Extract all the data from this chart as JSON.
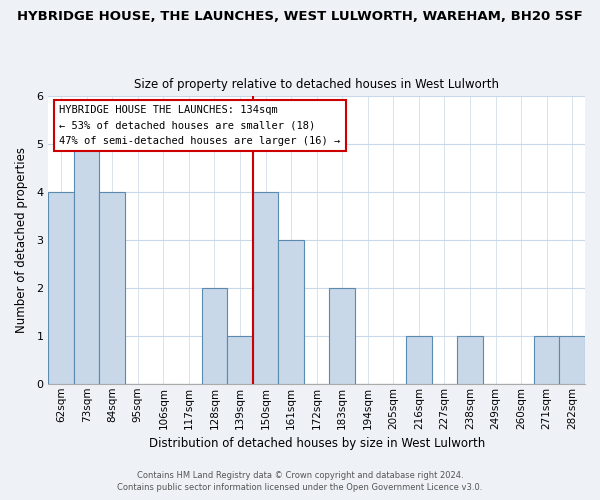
{
  "title": "HYBRIDGE HOUSE, THE LAUNCHES, WEST LULWORTH, WAREHAM, BH20 5SF",
  "subtitle": "Size of property relative to detached houses in West Lulworth",
  "xlabel": "Distribution of detached houses by size in West Lulworth",
  "ylabel": "Number of detached properties",
  "bar_labels": [
    "62sqm",
    "73sqm",
    "84sqm",
    "95sqm",
    "106sqm",
    "117sqm",
    "128sqm",
    "139sqm",
    "150sqm",
    "161sqm",
    "172sqm",
    "183sqm",
    "194sqm",
    "205sqm",
    "216sqm",
    "227sqm",
    "238sqm",
    "249sqm",
    "260sqm",
    "271sqm",
    "282sqm"
  ],
  "bar_values": [
    4,
    5,
    4,
    0,
    0,
    0,
    2,
    1,
    4,
    3,
    0,
    2,
    0,
    0,
    1,
    0,
    1,
    0,
    0,
    1,
    1
  ],
  "bar_color": "#c8d8e8",
  "bar_edge_color": "#5a8ab0",
  "highlight_bin_index": 7,
  "highlight_color": "#cc0000",
  "ylim": [
    0,
    6
  ],
  "yticks": [
    0,
    1,
    2,
    3,
    4,
    5,
    6
  ],
  "annotation_title": "HYBRIDGE HOUSE THE LAUNCHES: 134sqm",
  "annotation_line1": "← 53% of detached houses are smaller (18)",
  "annotation_line2": "47% of semi-detached houses are larger (16) →",
  "annotation_box_color": "#ffffff",
  "annotation_box_edge": "#cc0000",
  "footer1": "Contains HM Land Registry data © Crown copyright and database right 2024.",
  "footer2": "Contains public sector information licensed under the Open Government Licence v3.0.",
  "background_color": "#eef2f7",
  "plot_bg_color": "#ffffff",
  "grid_color": "#c8d8e8"
}
